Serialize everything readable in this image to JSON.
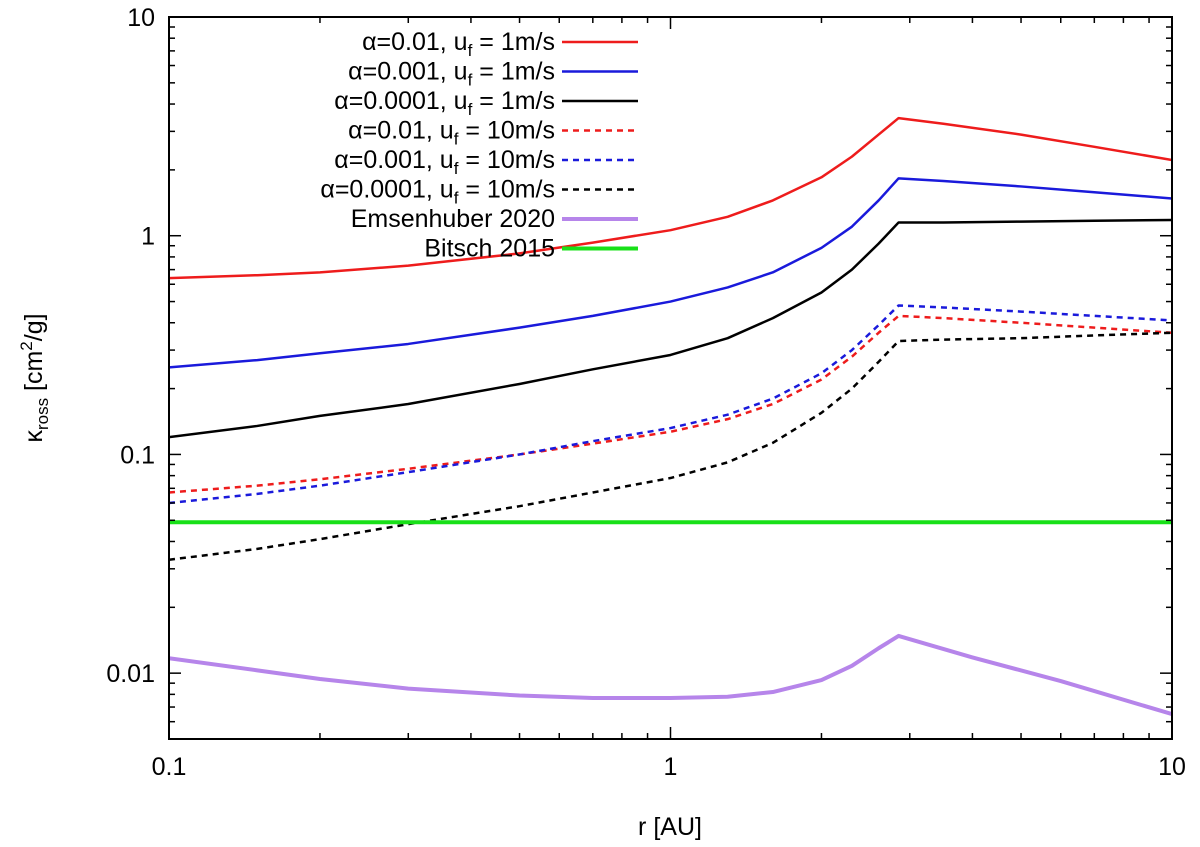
{
  "chart_data": {
    "type": "line",
    "title": "",
    "xlabel": "r [AU]",
    "ylabel": {
      "symbol": "κ",
      "subscript": "ross",
      "unit_prefix": " [cm",
      "unit_sup": "2",
      "unit_suffix": "/g]"
    },
    "xscale": "log",
    "yscale": "log",
    "xlim": [
      0.1,
      10
    ],
    "ylim": [
      0.005,
      10
    ],
    "x_ticks": [
      {
        "value": 0.1,
        "label": "0.1"
      },
      {
        "value": 1,
        "label": "1"
      },
      {
        "value": 10,
        "label": "10"
      }
    ],
    "y_ticks": [
      {
        "value": 0.01,
        "label": "0.01"
      },
      {
        "value": 0.1,
        "label": "0.1"
      },
      {
        "value": 1,
        "label": "1"
      },
      {
        "value": 10,
        "label": "10"
      }
    ],
    "legend_position": "top-left",
    "series": [
      {
        "name": "α=0.01, uf = 1m/s",
        "legend": {
          "alpha": "α=0.01, u",
          "sub": "f",
          "rest": " = 1m/s"
        },
        "color": "#ee1c1c",
        "dash": "solid",
        "width": 2.5,
        "x": [
          0.1,
          0.15,
          0.2,
          0.3,
          0.5,
          0.7,
          1.0,
          1.3,
          1.6,
          2.0,
          2.3,
          2.6,
          2.85,
          3.5,
          5.0,
          7.0,
          10.0
        ],
        "y": [
          0.64,
          0.66,
          0.68,
          0.73,
          0.83,
          0.93,
          1.06,
          1.22,
          1.45,
          1.85,
          2.3,
          2.9,
          3.45,
          3.25,
          2.9,
          2.55,
          2.22
        ]
      },
      {
        "name": "α=0.001, uf = 1m/s",
        "legend": {
          "alpha": "α=0.001, u",
          "sub": "f",
          "rest": " = 1m/s"
        },
        "color": "#1a1adb",
        "dash": "solid",
        "width": 2.5,
        "x": [
          0.1,
          0.15,
          0.2,
          0.3,
          0.5,
          0.7,
          1.0,
          1.3,
          1.6,
          2.0,
          2.3,
          2.6,
          2.85,
          3.5,
          5.0,
          7.0,
          10.0
        ],
        "y": [
          0.25,
          0.27,
          0.29,
          0.32,
          0.38,
          0.43,
          0.5,
          0.58,
          0.68,
          0.88,
          1.1,
          1.45,
          1.83,
          1.78,
          1.68,
          1.58,
          1.48
        ]
      },
      {
        "name": "α=0.0001, uf = 1m/s",
        "legend": {
          "alpha": "α=0.0001, u",
          "sub": "f",
          "rest": " = 1m/s"
        },
        "color": "#000000",
        "dash": "solid",
        "width": 2.5,
        "x": [
          0.1,
          0.15,
          0.2,
          0.3,
          0.5,
          0.7,
          1.0,
          1.3,
          1.6,
          2.0,
          2.3,
          2.6,
          2.85,
          3.5,
          5.0,
          7.0,
          10.0
        ],
        "y": [
          0.12,
          0.135,
          0.15,
          0.17,
          0.21,
          0.245,
          0.285,
          0.34,
          0.42,
          0.55,
          0.7,
          0.92,
          1.15,
          1.15,
          1.16,
          1.17,
          1.18
        ]
      },
      {
        "name": "α=0.01, uf = 10m/s",
        "legend": {
          "alpha": "α=0.01, u",
          "sub": "f",
          "rest": " = 10m/s"
        },
        "color": "#ee1c1c",
        "dash": "dashed",
        "width": 2.5,
        "x": [
          0.1,
          0.15,
          0.2,
          0.3,
          0.5,
          0.7,
          1.0,
          1.3,
          1.6,
          2.0,
          2.3,
          2.6,
          2.85,
          3.5,
          5.0,
          7.0,
          10.0
        ],
        "y": [
          0.067,
          0.072,
          0.077,
          0.086,
          0.1,
          0.112,
          0.127,
          0.145,
          0.17,
          0.22,
          0.28,
          0.36,
          0.43,
          0.42,
          0.4,
          0.38,
          0.36
        ]
      },
      {
        "name": "α=0.001, uf = 10m/s",
        "legend": {
          "alpha": "α=0.001, u",
          "sub": "f",
          "rest": " = 10m/s"
        },
        "color": "#1a1adb",
        "dash": "dashed",
        "width": 2.5,
        "x": [
          0.1,
          0.15,
          0.2,
          0.3,
          0.5,
          0.7,
          1.0,
          1.3,
          1.6,
          2.0,
          2.3,
          2.6,
          2.85,
          3.5,
          5.0,
          7.0,
          10.0
        ],
        "y": [
          0.06,
          0.066,
          0.072,
          0.083,
          0.1,
          0.115,
          0.132,
          0.152,
          0.18,
          0.235,
          0.3,
          0.39,
          0.48,
          0.47,
          0.45,
          0.43,
          0.41
        ]
      },
      {
        "name": "α=0.0001, uf = 10m/s",
        "legend": {
          "alpha": "α=0.0001, u",
          "sub": "f",
          "rest": " = 10m/s"
        },
        "color": "#000000",
        "dash": "dashed",
        "width": 2.5,
        "x": [
          0.1,
          0.15,
          0.2,
          0.3,
          0.5,
          0.7,
          1.0,
          1.3,
          1.6,
          2.0,
          2.3,
          2.6,
          2.85,
          3.5,
          5.0,
          7.0,
          10.0
        ],
        "y": [
          0.033,
          0.037,
          0.041,
          0.048,
          0.058,
          0.067,
          0.078,
          0.092,
          0.113,
          0.155,
          0.2,
          0.265,
          0.33,
          0.335,
          0.34,
          0.35,
          0.36
        ]
      },
      {
        "name": "Emsenhuber 2020",
        "legend": {
          "alpha": "Emsenhuber 2020",
          "sub": "",
          "rest": ""
        },
        "color": "#b685ea",
        "dash": "solid",
        "width": 4,
        "x": [
          0.1,
          0.15,
          0.2,
          0.3,
          0.5,
          0.7,
          1.0,
          1.3,
          1.6,
          2.0,
          2.3,
          2.6,
          2.85,
          4.0,
          6.0,
          10.0
        ],
        "y": [
          0.0117,
          0.0103,
          0.0094,
          0.0085,
          0.0079,
          0.0077,
          0.0077,
          0.0078,
          0.0082,
          0.0093,
          0.0108,
          0.013,
          0.0148,
          0.0118,
          0.0092,
          0.0065
        ]
      },
      {
        "name": "Bitsch 2015",
        "legend": {
          "alpha": "Bitsch 2015",
          "sub": "",
          "rest": ""
        },
        "color": "#18e018",
        "dash": "solid",
        "width": 4,
        "x": [
          0.1,
          10.0
        ],
        "y": [
          0.049,
          0.049
        ]
      }
    ]
  }
}
